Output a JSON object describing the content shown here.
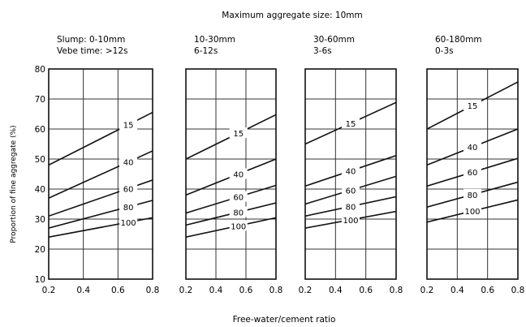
{
  "chart_data": {
    "type": "line",
    "title": "Maximum aggregate size: 10mm",
    "xlabel": "Free-water/cement ratio",
    "ylabel": "Proportion of fine aggregate (%)",
    "xlim": [
      0.2,
      0.8
    ],
    "ylim": [
      10,
      80
    ],
    "x_ticks": [
      "0.2",
      "0.4",
      "0.6",
      "0.8"
    ],
    "y_ticks": [
      "10",
      "20",
      "30",
      "40",
      "50",
      "60",
      "70",
      "80"
    ],
    "grid": true,
    "panels": [
      {
        "header": [
          "Slump: 0-10mm",
          "Vebe time: >12s"
        ],
        "curves": [
          {
            "label": "15",
            "x": [
              0.2,
              0.85
            ],
            "y": [
              48,
              67
            ]
          },
          {
            "label": "40",
            "x": [
              0.2,
              0.85
            ],
            "y": [
              37,
              54
            ]
          },
          {
            "label": "60",
            "x": [
              0.2,
              0.85
            ],
            "y": [
              31,
              44
            ]
          },
          {
            "label": "80",
            "x": [
              0.2,
              0.85
            ],
            "y": [
              27,
              37
            ]
          },
          {
            "label": "100",
            "x": [
              0.2,
              0.85
            ],
            "y": [
              24,
              31
            ]
          }
        ]
      },
      {
        "header": [
          "10-30mm",
          "6-12s"
        ],
        "curves": [
          {
            "label": "15",
            "x": [
              0.2,
              0.85
            ],
            "y": [
              50,
              66
            ]
          },
          {
            "label": "40",
            "x": [
              0.2,
              0.85
            ],
            "y": [
              38,
              51
            ]
          },
          {
            "label": "60",
            "x": [
              0.2,
              0.85
            ],
            "y": [
              32,
              42
            ]
          },
          {
            "label": "80",
            "x": [
              0.2,
              0.85
            ],
            "y": [
              28,
              36
            ]
          },
          {
            "label": "100",
            "x": [
              0.2,
              0.85
            ],
            "y": [
              24,
              31
            ]
          }
        ]
      },
      {
        "header": [
          "30-60mm",
          "3-6s"
        ],
        "curves": [
          {
            "label": "15",
            "x": [
              0.2,
              0.85
            ],
            "y": [
              55,
              70
            ]
          },
          {
            "label": "40",
            "x": [
              0.2,
              0.85
            ],
            "y": [
              41,
              52
            ]
          },
          {
            "label": "60",
            "x": [
              0.2,
              0.85
            ],
            "y": [
              35,
              45
            ]
          },
          {
            "label": "80",
            "x": [
              0.2,
              0.85
            ],
            "y": [
              31,
              38
            ]
          },
          {
            "label": "100",
            "x": [
              0.2,
              0.85
            ],
            "y": [
              27,
              33
            ]
          }
        ]
      },
      {
        "header": [
          "60-180mm",
          "0-3s"
        ],
        "curves": [
          {
            "label": "15",
            "x": [
              0.2,
              0.85
            ],
            "y": [
              60,
              77
            ]
          },
          {
            "label": "40",
            "x": [
              0.2,
              0.85
            ],
            "y": [
              48,
              61
            ]
          },
          {
            "label": "60",
            "x": [
              0.2,
              0.85
            ],
            "y": [
              41,
              51
            ]
          },
          {
            "label": "80",
            "x": [
              0.2,
              0.85
            ],
            "y": [
              34,
              43
            ]
          },
          {
            "label": "100",
            "x": [
              0.2,
              0.85
            ],
            "y": [
              29,
              37
            ]
          }
        ]
      }
    ]
  }
}
